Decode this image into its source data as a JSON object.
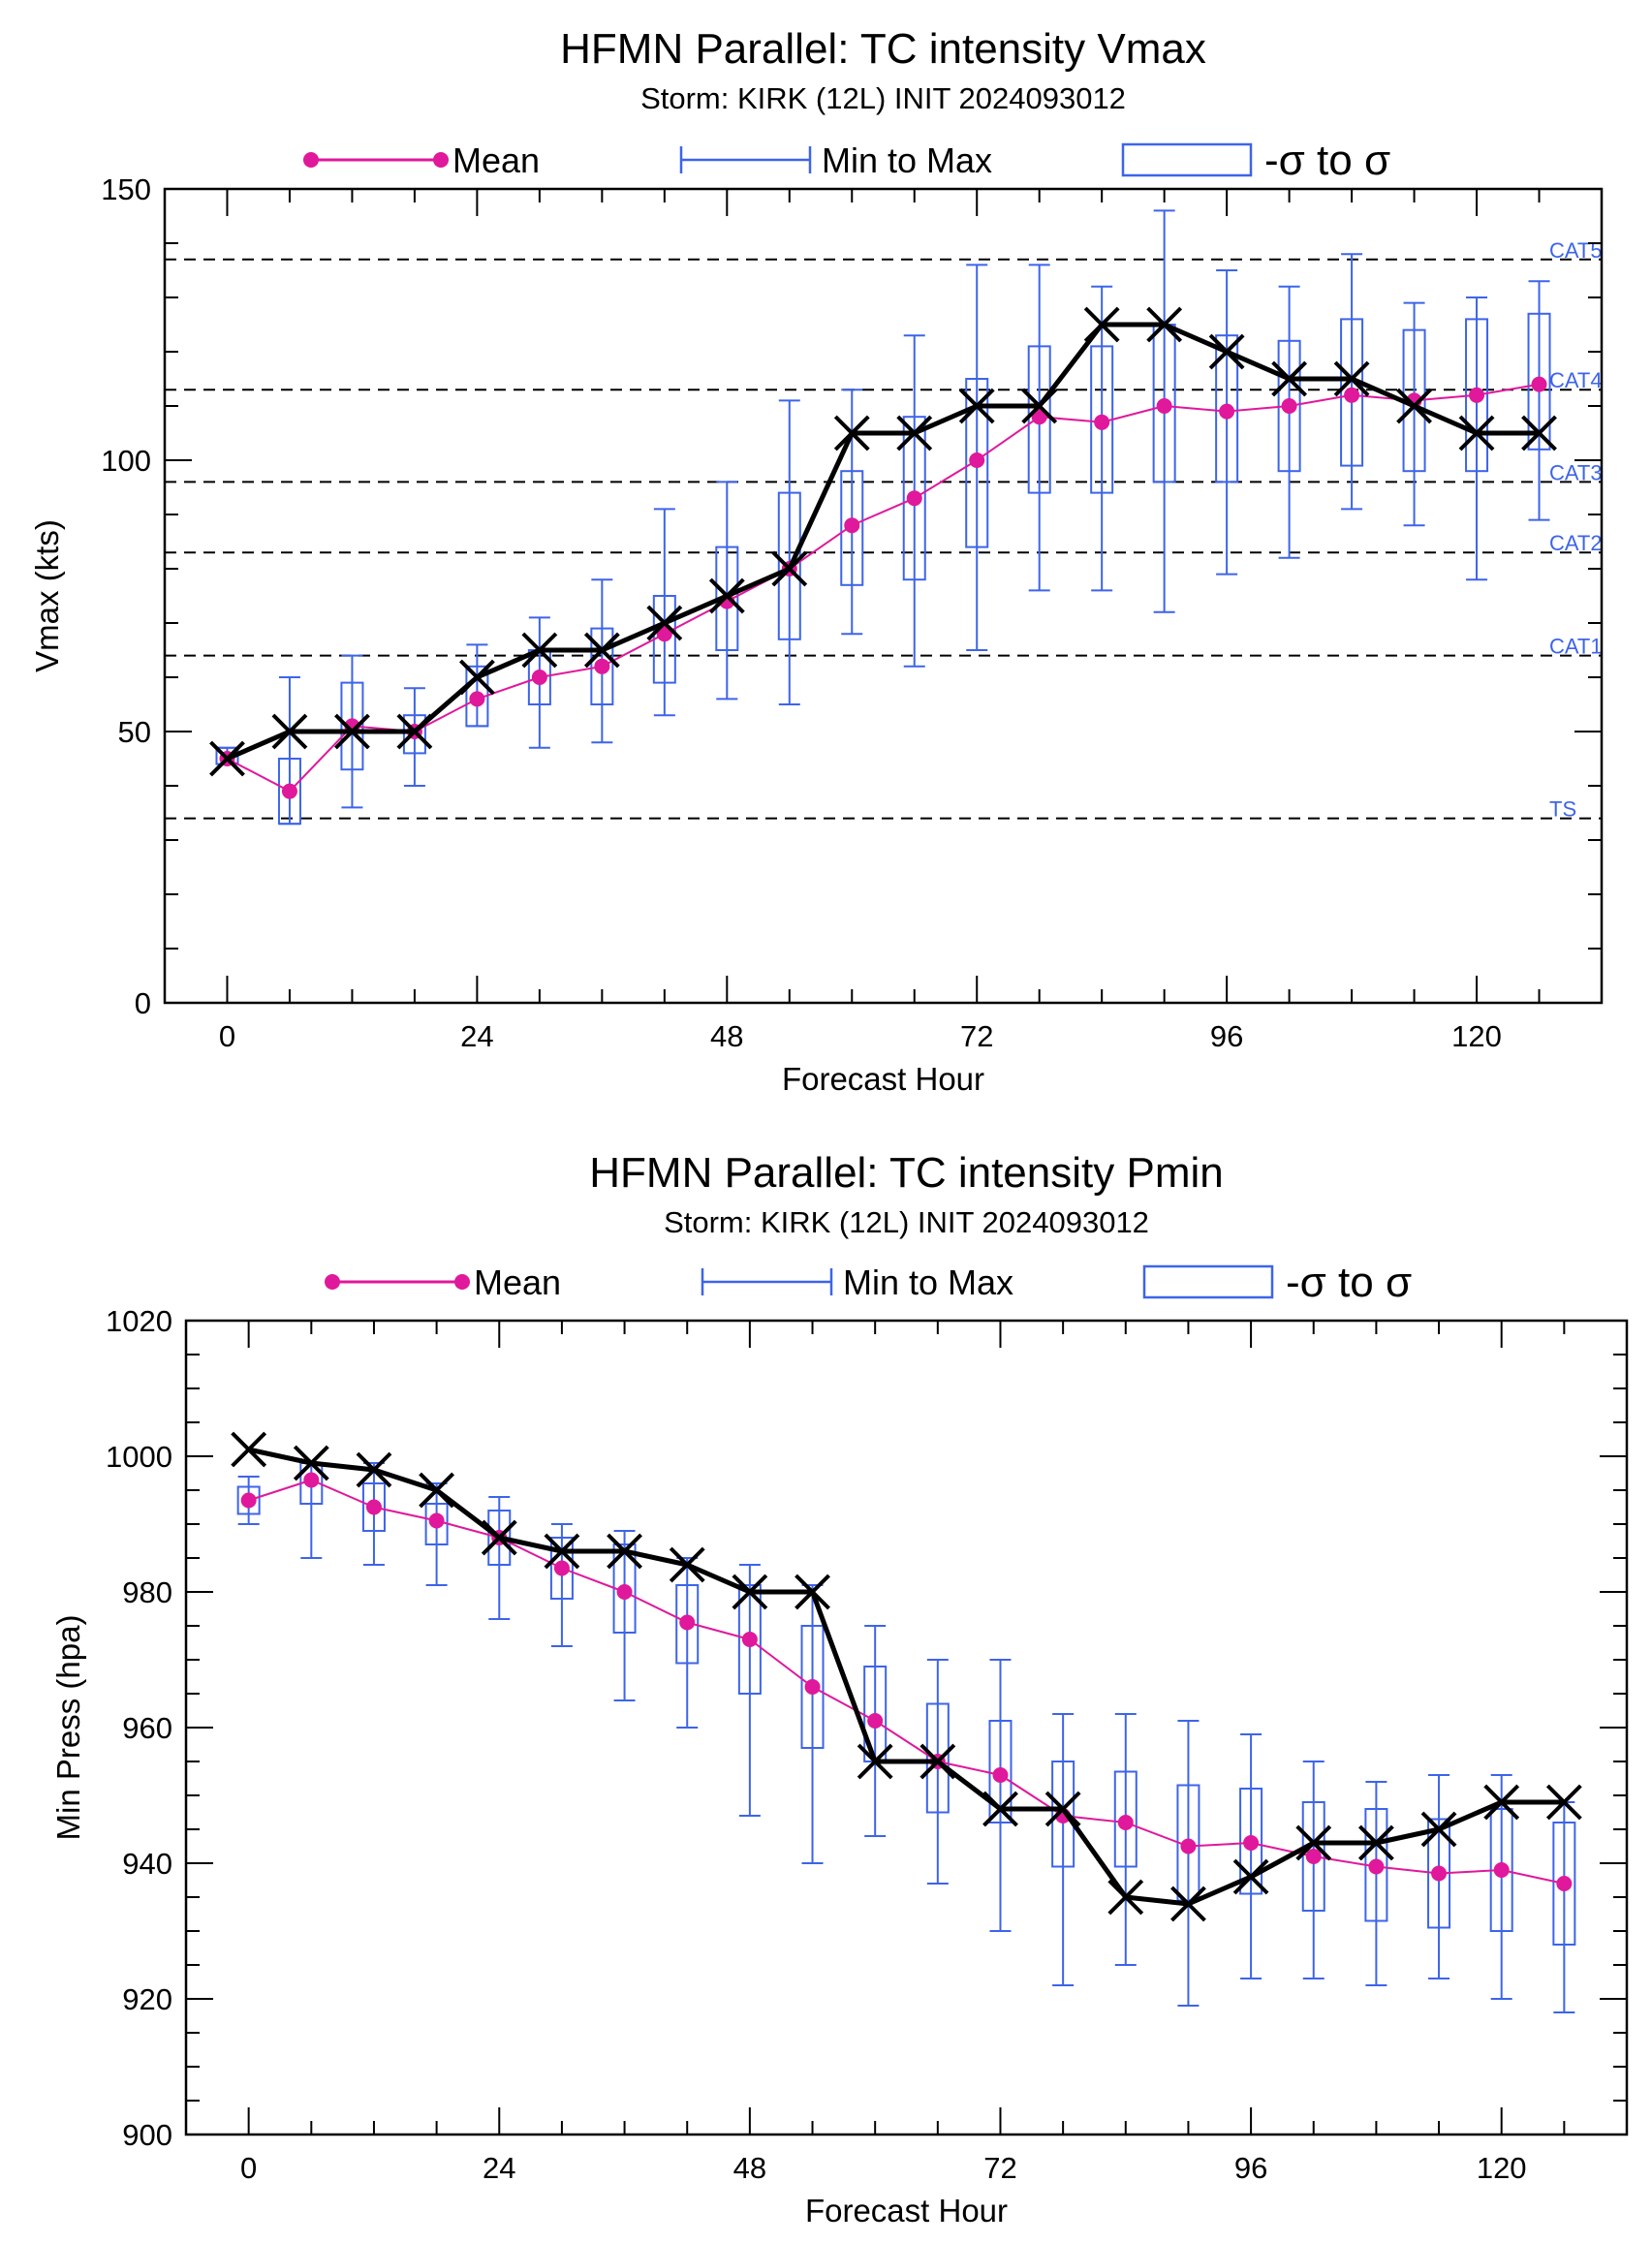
{
  "colors": {
    "mean": "#e0189b",
    "minmax": "#3d64ea",
    "box": "#3d64ea",
    "obs": "#000000",
    "category_label": "#3d64ea"
  },
  "legend": {
    "mean": "Mean",
    "minmax": "Min to Max",
    "sigma": "-σ to σ"
  },
  "chart_data": [
    {
      "type": "box",
      "title": "HFMN Parallel: TC intensity Vmax",
      "subtitle": "Storm: KIRK (12L) INIT 2024093012",
      "xlabel": "Forecast Hour",
      "ylabel": "Vmax (kts)",
      "xlim": [
        -6,
        132
      ],
      "ylim": [
        0,
        150
      ],
      "xticks": [
        0,
        24,
        48,
        72,
        96,
        120
      ],
      "yticks": [
        0,
        50,
        100,
        150
      ],
      "y_minor_step": 10,
      "grid": false,
      "legend_position": "top",
      "reference_lines": [
        {
          "label": "TS",
          "value": 34
        },
        {
          "label": "CAT1",
          "value": 64
        },
        {
          "label": "CAT2",
          "value": 83
        },
        {
          "label": "CAT3",
          "value": 96
        },
        {
          "label": "CAT4",
          "value": 113
        },
        {
          "label": "CAT5",
          "value": 137
        }
      ],
      "hours": [
        0,
        6,
        12,
        18,
        24,
        30,
        36,
        42,
        48,
        54,
        60,
        66,
        72,
        78,
        84,
        90,
        96,
        102,
        108,
        114,
        120,
        126
      ],
      "mean": [
        45,
        39,
        51,
        50,
        56,
        60,
        62,
        68,
        74,
        80,
        88,
        93,
        100,
        108,
        107,
        110,
        109,
        110,
        112,
        111,
        112,
        114
      ],
      "min": [
        44,
        33,
        36,
        40,
        51,
        47,
        48,
        53,
        56,
        55,
        68,
        62,
        65,
        76,
        76,
        72,
        79,
        82,
        91,
        88,
        78,
        89
      ],
      "max": [
        47,
        60,
        64,
        58,
        66,
        71,
        78,
        91,
        96,
        111,
        113,
        123,
        136,
        136,
        132,
        146,
        135,
        132,
        138,
        129,
        130,
        133
      ],
      "box_low": [
        44,
        33,
        43,
        46,
        51,
        55,
        55,
        59,
        65,
        67,
        77,
        78,
        84,
        94,
        94,
        96,
        96,
        98,
        99,
        98,
        98,
        102
      ],
      "box_high": [
        47,
        45,
        59,
        53,
        62,
        65,
        69,
        75,
        84,
        94,
        98,
        108,
        115,
        121,
        121,
        125,
        123,
        122,
        126,
        124,
        126,
        127
      ],
      "obs": [
        45,
        50,
        50,
        50,
        60,
        65,
        65,
        70,
        75,
        80,
        105,
        105,
        110,
        110,
        125,
        125,
        120,
        115,
        115,
        110,
        105,
        105
      ]
    },
    {
      "type": "box",
      "title": "HFMN Parallel: TC intensity Pmin",
      "subtitle": "Storm: KIRK (12L) INIT 2024093012",
      "xlabel": "Forecast Hour",
      "ylabel": "Min Press (hpa)",
      "xlim": [
        -6,
        132
      ],
      "ylim": [
        900,
        1020
      ],
      "xticks": [
        0,
        24,
        48,
        72,
        96,
        120
      ],
      "yticks": [
        900,
        920,
        940,
        960,
        980,
        1000,
        1020
      ],
      "y_minor_step": 5,
      "grid": false,
      "legend_position": "top",
      "reference_lines": [],
      "hours": [
        0,
        6,
        12,
        18,
        24,
        30,
        36,
        42,
        48,
        54,
        60,
        66,
        72,
        78,
        84,
        90,
        96,
        102,
        108,
        114,
        120,
        126
      ],
      "mean": [
        993.5,
        996.5,
        992.5,
        990.5,
        988,
        983.5,
        980,
        975.5,
        973,
        966,
        961,
        955,
        953,
        947,
        946,
        942.5,
        943,
        941,
        939.5,
        938.5,
        939,
        937
      ],
      "min": [
        990,
        985,
        984,
        981,
        976,
        972,
        964,
        960,
        947,
        940,
        944,
        937,
        930,
        922,
        925,
        919,
        923,
        923,
        922,
        923,
        920,
        918
      ],
      "max": [
        997,
        999,
        999,
        996,
        994,
        990,
        989,
        985,
        984,
        981,
        975,
        970,
        970,
        962,
        962,
        961,
        959,
        955,
        952,
        953,
        953,
        949
      ],
      "box_low": [
        991.5,
        993,
        989,
        987,
        984,
        979,
        974,
        969.5,
        965,
        957,
        955,
        947.5,
        946,
        939.5,
        939.5,
        934.5,
        935.5,
        933,
        931.5,
        930.5,
        930,
        928
      ],
      "box_high": [
        995.5,
        999,
        996,
        993,
        992,
        988,
        987,
        981,
        981,
        975,
        969,
        963.5,
        961,
        955,
        953.5,
        951.5,
        951,
        949,
        948,
        946.5,
        948,
        946
      ],
      "obs": [
        1001,
        999,
        998,
        995,
        988,
        986,
        986,
        984,
        980,
        980,
        955,
        955,
        948,
        948,
        935,
        934,
        938,
        943,
        943,
        945,
        949,
        949
      ]
    }
  ]
}
